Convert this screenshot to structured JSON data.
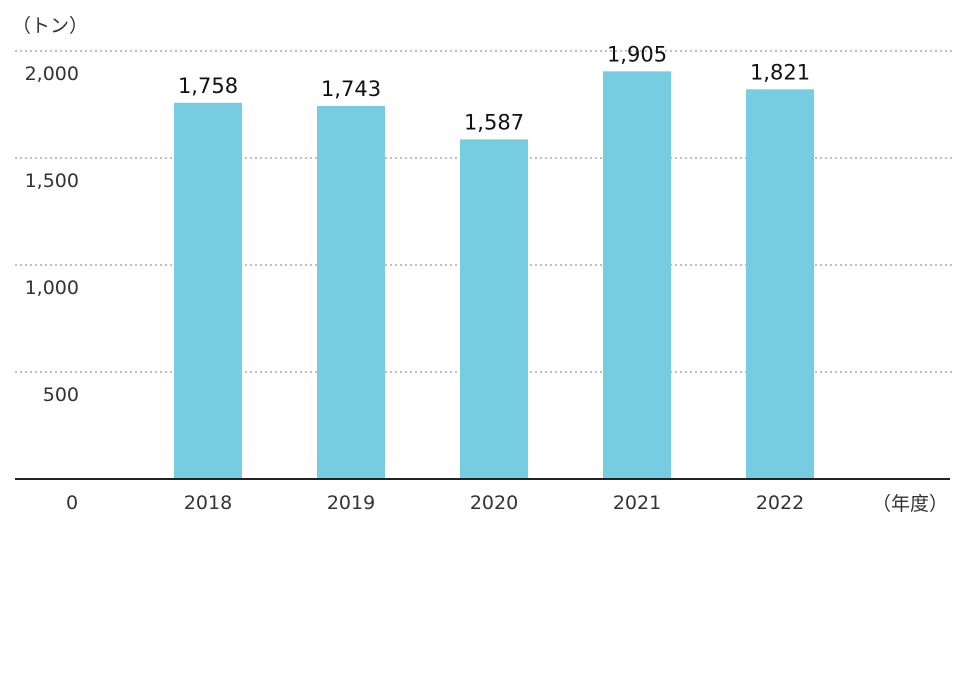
{
  "chart_data": {
    "type": "bar",
    "title": "",
    "xlabel": "（年度）",
    "ylabel": "（トン）",
    "categories": [
      "2018",
      "2019",
      "2020",
      "2021",
      "2022"
    ],
    "values": [
      1758,
      1743,
      1587,
      1905,
      1821
    ],
    "value_labels": [
      "1,758",
      "1,743",
      "1,587",
      "1,905",
      "1,821"
    ],
    "yticks": [
      {
        "value": 0,
        "label": "0"
      },
      {
        "value": 500,
        "label": "500"
      },
      {
        "value": 1000,
        "label": "1,000"
      },
      {
        "value": 1500,
        "label": "1,500"
      },
      {
        "value": 2000,
        "label": "2,000"
      }
    ],
    "ylim": [
      0,
      2000
    ],
    "grid": true,
    "bar_color": "#76CCE0"
  }
}
